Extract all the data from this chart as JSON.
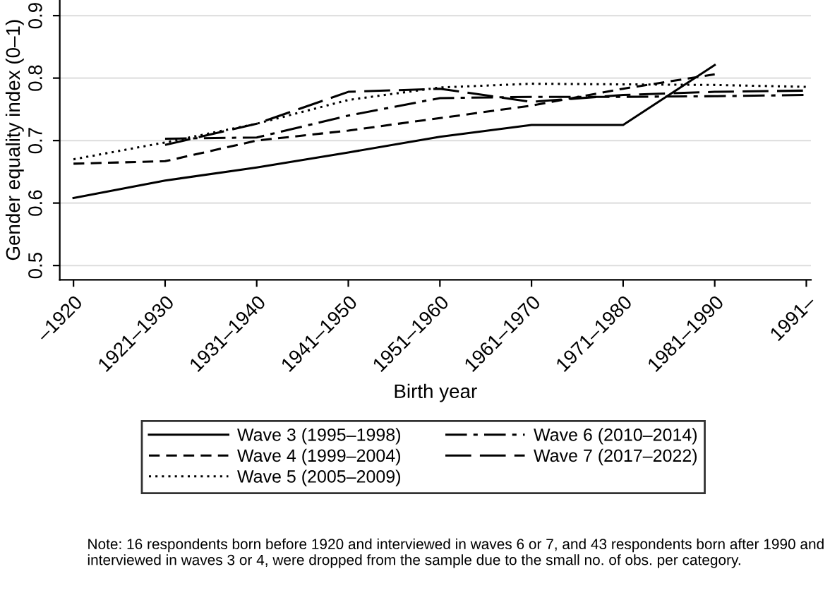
{
  "chart_data": {
    "type": "line",
    "xlabel": "Birth year",
    "ylabel": "Gender equality index (0–1)",
    "categories": [
      "–1920",
      "1921–1930",
      "1931–1940",
      "1941–1950",
      "1951–1960",
      "1961–1970",
      "1971–1980",
      "1981–1990",
      "1991–"
    ],
    "series": [
      {
        "name": "Wave 3 (1995–1998)",
        "color": "#000000",
        "line_style": "solid",
        "values": [
          0.608,
          0.636,
          0.657,
          0.681,
          0.706,
          0.725,
          0.725,
          0.821,
          null
        ]
      },
      {
        "name": "Wave 4 (1999–2004)",
        "color": "#000000",
        "line_style": "dashed",
        "values": [
          0.663,
          0.667,
          0.7,
          0.716,
          0.736,
          0.756,
          0.783,
          0.806,
          null
        ]
      },
      {
        "name": "Wave 5 (2005–2009)",
        "color": "#000000",
        "line_style": "dotted",
        "values": [
          0.67,
          0.697,
          0.727,
          0.765,
          0.785,
          0.791,
          0.79,
          0.789,
          0.786
        ]
      },
      {
        "name": "Wave 6 (2010–2014)",
        "color": "#000000",
        "line_style": "dashdot",
        "values": [
          null,
          0.703,
          0.705,
          0.74,
          0.768,
          0.77,
          0.77,
          0.771,
          0.773
        ]
      },
      {
        "name": "Wave 7 (2017–2022)",
        "color": "#000000",
        "line_style": "longdash",
        "values": [
          null,
          0.693,
          0.727,
          0.778,
          0.783,
          0.762,
          0.773,
          0.778,
          0.78
        ]
      }
    ],
    "ylim": [
      0.477,
      0.925
    ],
    "yticks": [
      0.5,
      0.6,
      0.7,
      0.8,
      0.9
    ],
    "grid": "y",
    "legend": "bottom",
    "marker": "none",
    "annotations": [
      "Note: 16 respondents born before 1920 and interviewed in waves 6 or 7, and 43 respondents born after 1990 and interviewed in waves 3 or 4, were dropped from the sample due to the small no. of obs. per category."
    ]
  }
}
